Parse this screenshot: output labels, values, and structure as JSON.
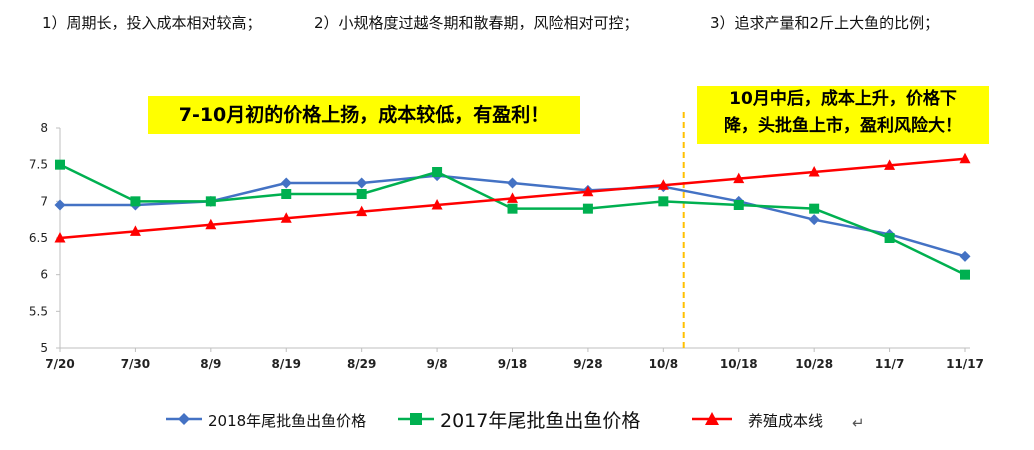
{
  "header": {
    "point1": "1）周期长，投入成本相对较高；",
    "point2": "2）小规格度过越冬期和散春期，风险相对可控；",
    "point3": "3）追求产量和2斤上大鱼的比例；"
  },
  "callouts": {
    "left": "7-10月初的价格上扬，成本较低，有盈利！",
    "right_line1": "10月中后，成本上升，价格下",
    "right_line2": "降，头批鱼上市，盈利风险大！"
  },
  "legend": {
    "series_2018": "2018年尾批鱼出鱼价格",
    "series_2017": "2017年尾批鱼出鱼价格",
    "series_cost": "养殖成本线",
    "return_mark": "↵"
  },
  "colors": {
    "series_2018": "#4472c4",
    "series_2017": "#00b050",
    "series_cost": "#ff0000",
    "divider": "#ffc000",
    "callout_bg": "#ffff00"
  },
  "chart_data": {
    "type": "line",
    "title": "",
    "xlabel": "",
    "ylabel": "",
    "categories": [
      "7/20",
      "7/30",
      "8/9",
      "8/19",
      "8/29",
      "9/8",
      "9/18",
      "9/28",
      "10/8",
      "10/18",
      "10/28",
      "11/7",
      "11/17"
    ],
    "ylim": [
      5,
      8
    ],
    "yticks": [
      "5",
      "5.5",
      "6",
      "6.5",
      "7",
      "7.5",
      "8"
    ],
    "grid": false,
    "legend_position": "bottom",
    "divider_after_category": "10/8",
    "series": [
      {
        "name": "2018年尾批鱼出鱼价格",
        "marker": "diamond",
        "values": [
          6.95,
          6.95,
          7.0,
          7.25,
          7.25,
          7.35,
          7.25,
          7.15,
          7.2,
          7.0,
          6.75,
          6.55,
          6.25
        ]
      },
      {
        "name": "2017年尾批鱼出鱼价格",
        "marker": "square",
        "values": [
          7.5,
          7.0,
          7.0,
          7.1,
          7.1,
          7.4,
          6.9,
          6.9,
          7.0,
          6.95,
          6.9,
          6.5,
          6.0
        ]
      },
      {
        "name": "养殖成本线",
        "marker": "triangle",
        "values": [
          6.5,
          6.59,
          6.68,
          6.77,
          6.86,
          6.95,
          7.04,
          7.13,
          7.22,
          7.31,
          7.4,
          7.49,
          7.58
        ]
      }
    ]
  }
}
